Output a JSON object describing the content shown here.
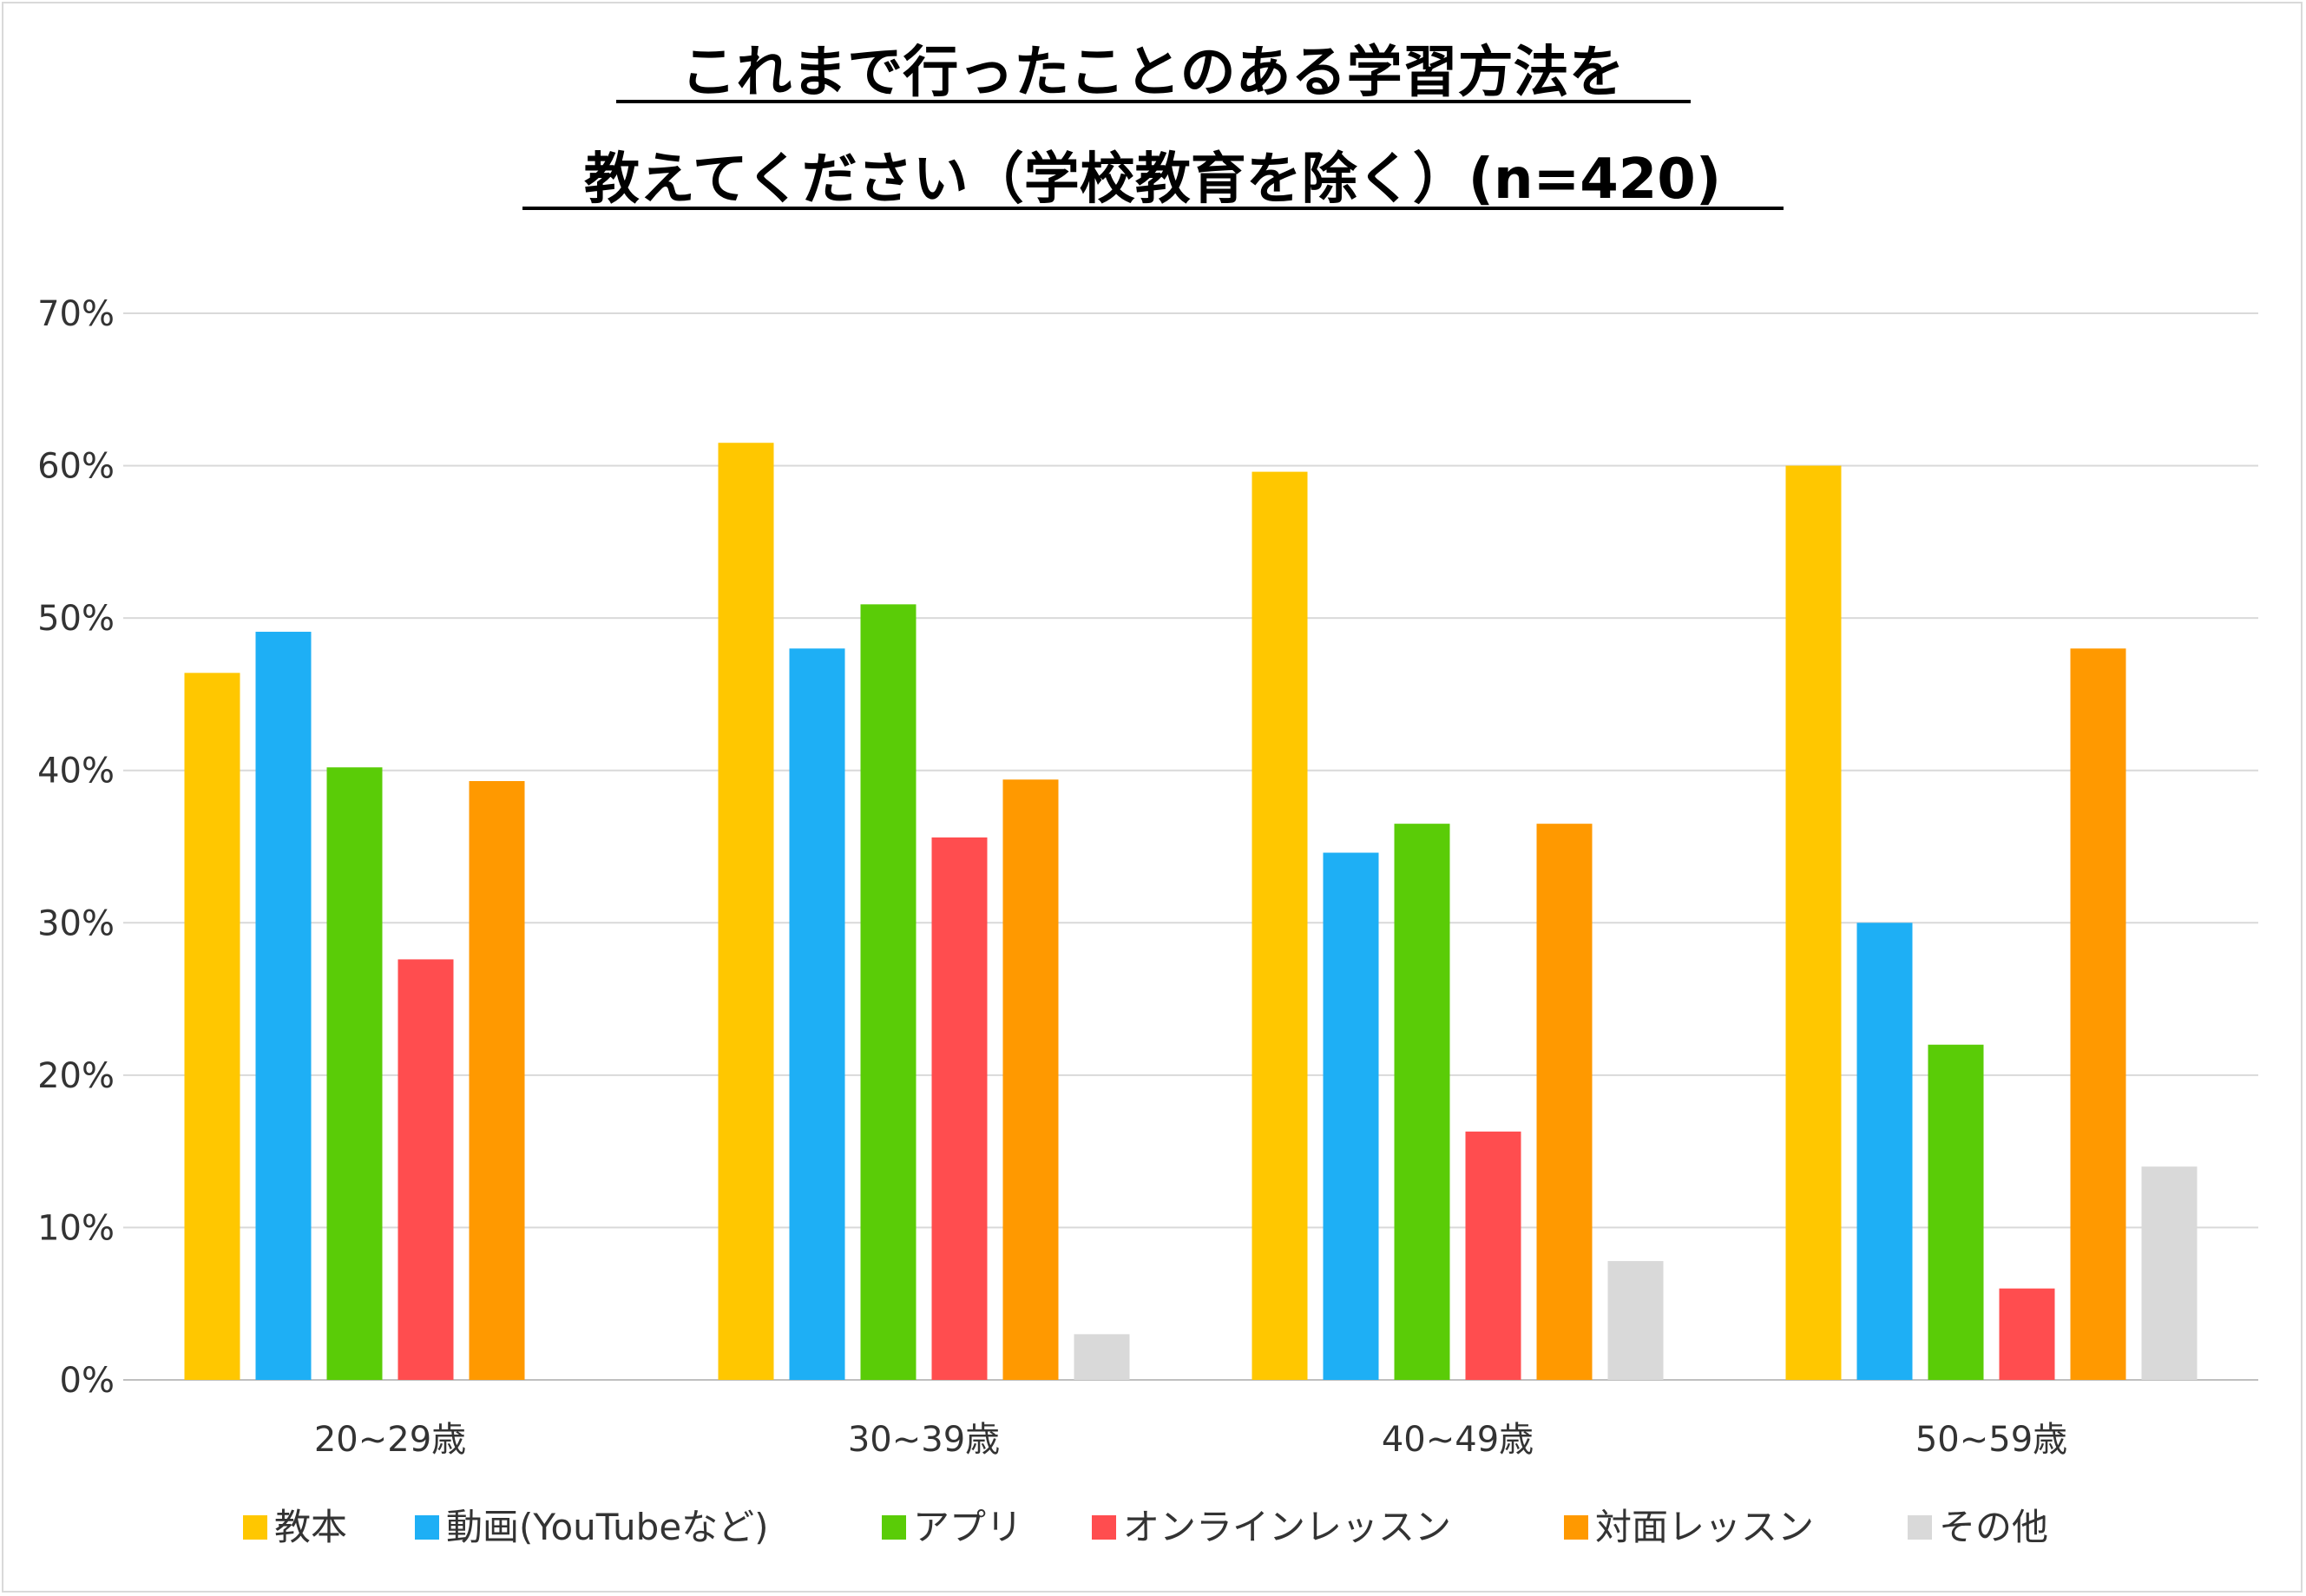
{
  "chart_data": {
    "type": "bar",
    "title_lines": [
      "これまで行ったことのある学習方法を",
      "教えてください（学校教育を除く）(n=420)"
    ],
    "categories": [
      "20~29歳",
      "30~39歳",
      "40~49歳",
      "50~59歳"
    ],
    "series": [
      {
        "name": "教本",
        "color": "#FFC700",
        "values": [
          46.4,
          61.5,
          59.6,
          60.0
        ]
      },
      {
        "name": "動画(YouTubeなど)",
        "color": "#1EAFF5",
        "values": [
          49.1,
          48.0,
          34.6,
          30.0
        ]
      },
      {
        "name": "アプリ",
        "color": "#5ACC07",
        "values": [
          40.2,
          50.9,
          36.5,
          22.0
        ]
      },
      {
        "name": "オンラインレッスン",
        "color": "#FF4D4F",
        "values": [
          27.6,
          35.6,
          16.3,
          6.0
        ]
      },
      {
        "name": "対面レッスン",
        "color": "#FF9900",
        "values": [
          39.3,
          39.4,
          36.5,
          48.0
        ]
      },
      {
        "name": "その他",
        "color": "#D9D9D9",
        "values": [
          0,
          3.0,
          7.8,
          14.0
        ]
      }
    ],
    "ylim": [
      0,
      70
    ],
    "yticks": [
      "0%",
      "10%",
      "20%",
      "30%",
      "40%",
      "50%",
      "60%",
      "70%"
    ],
    "grid": true,
    "legend_position": "bottom"
  }
}
